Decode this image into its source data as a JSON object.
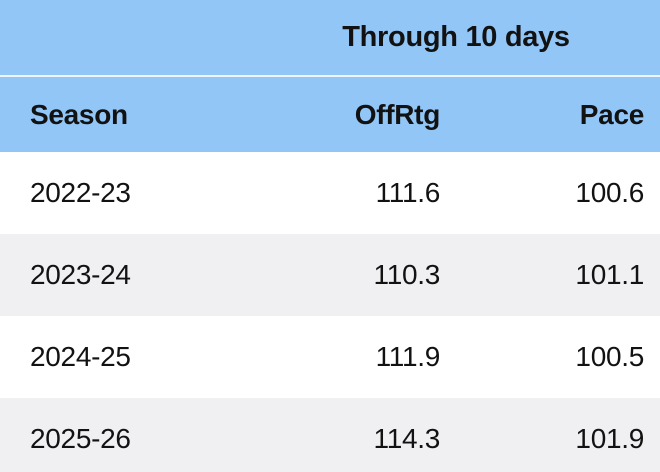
{
  "chart_data": {
    "type": "table",
    "title": "Through 10 days",
    "columns": [
      "Season",
      "OffRtg",
      "Pace"
    ],
    "rows": [
      {
        "season": "2022-23",
        "offrtg": "111.6",
        "pace": "100.6"
      },
      {
        "season": "2023-24",
        "offrtg": "110.3",
        "pace": "101.1"
      },
      {
        "season": "2024-25",
        "offrtg": "111.9",
        "pace": "100.5"
      },
      {
        "season": "2025-26",
        "offrtg": "114.3",
        "pace": "101.9"
      }
    ],
    "layout_hints": {
      "group_header_spans": [
        "OffRtg",
        "Pace"
      ],
      "numeric_alignment": "right",
      "season_alignment": "left",
      "alternating_rows": true
    },
    "colors": {
      "header_bg": "#91C6F7",
      "header_divider": "#EEF5FD",
      "row_bg": "#FFFFFF",
      "row_alt_bg": "#F0F0F2",
      "text": "#121212"
    }
  }
}
